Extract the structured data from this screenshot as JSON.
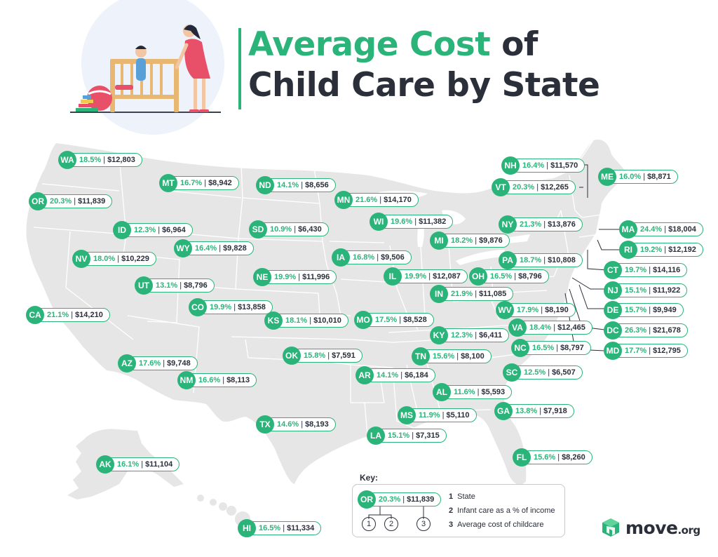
{
  "title": {
    "part1": "Average Cost",
    "part2": " of",
    "line2": "Child Care by State"
  },
  "states": [
    {
      "abbr": "WA",
      "pct": "18.5%",
      "cost": "$12,803"
    },
    {
      "abbr": "OR",
      "pct": "20.3%",
      "cost": "$11,839"
    },
    {
      "abbr": "CA",
      "pct": "21.1%",
      "cost": "$14,210"
    },
    {
      "abbr": "NV",
      "pct": "18.0%",
      "cost": "$10,229"
    },
    {
      "abbr": "ID",
      "pct": "12.3%",
      "cost": "$6,964"
    },
    {
      "abbr": "MT",
      "pct": "16.7%",
      "cost": "$8,942"
    },
    {
      "abbr": "WY",
      "pct": "16.4%",
      "cost": "$9,828"
    },
    {
      "abbr": "UT",
      "pct": "13.1%",
      "cost": "$8,796"
    },
    {
      "abbr": "AZ",
      "pct": "17.6%",
      "cost": "$9,748"
    },
    {
      "abbr": "NM",
      "pct": "16.6%",
      "cost": "$8,113"
    },
    {
      "abbr": "CO",
      "pct": "19.9%",
      "cost": "$13,858"
    },
    {
      "abbr": "ND",
      "pct": "14.1%",
      "cost": "$8,656"
    },
    {
      "abbr": "SD",
      "pct": "10.9%",
      "cost": "$6,430"
    },
    {
      "abbr": "NE",
      "pct": "19.9%",
      "cost": "$11,996"
    },
    {
      "abbr": "KS",
      "pct": "18.1%",
      "cost": "$10,010"
    },
    {
      "abbr": "OK",
      "pct": "15.8%",
      "cost": "$7,591"
    },
    {
      "abbr": "TX",
      "pct": "14.6%",
      "cost": "$8,193"
    },
    {
      "abbr": "MN",
      "pct": "21.6%",
      "cost": "$14,170"
    },
    {
      "abbr": "IA",
      "pct": "16.8%",
      "cost": "$9,506"
    },
    {
      "abbr": "MO",
      "pct": "17.5%",
      "cost": "$8,528"
    },
    {
      "abbr": "AR",
      "pct": "14.1%",
      "cost": "$6,184"
    },
    {
      "abbr": "LA",
      "pct": "15.1%",
      "cost": "$7,315"
    },
    {
      "abbr": "WI",
      "pct": "19.6%",
      "cost": "$11,382"
    },
    {
      "abbr": "IL",
      "pct": "19.9%",
      "cost": "$12,087"
    },
    {
      "abbr": "MI",
      "pct": "18.2%",
      "cost": "$9,876"
    },
    {
      "abbr": "IN",
      "pct": "21.9%",
      "cost": "$11,085"
    },
    {
      "abbr": "OH",
      "pct": "16.5%",
      "cost": "$8,796"
    },
    {
      "abbr": "KY",
      "pct": "12.3%",
      "cost": "$6,411"
    },
    {
      "abbr": "TN",
      "pct": "15.6%",
      "cost": "$8,100"
    },
    {
      "abbr": "MS",
      "pct": "11.9%",
      "cost": "$5,110"
    },
    {
      "abbr": "AL",
      "pct": "11.6%",
      "cost": "$5,593"
    },
    {
      "abbr": "GA",
      "pct": "13.8%",
      "cost": "$7,918"
    },
    {
      "abbr": "FL",
      "pct": "15.6%",
      "cost": "$8,260"
    },
    {
      "abbr": "SC",
      "pct": "12.5%",
      "cost": "$6,507"
    },
    {
      "abbr": "NC",
      "pct": "16.5%",
      "cost": "$8,797"
    },
    {
      "abbr": "VA",
      "pct": "18.4%",
      "cost": "$12,465"
    },
    {
      "abbr": "WV",
      "pct": "17.9%",
      "cost": "$8,190"
    },
    {
      "abbr": "PA",
      "pct": "18.7%",
      "cost": "$10,808"
    },
    {
      "abbr": "NY",
      "pct": "21.3%",
      "cost": "$13,876"
    },
    {
      "abbr": "VT",
      "pct": "20.3%",
      "cost": "$12,265"
    },
    {
      "abbr": "NH",
      "pct": "16.4%",
      "cost": "$11,570"
    },
    {
      "abbr": "ME",
      "pct": "16.0%",
      "cost": "$8,871"
    },
    {
      "abbr": "MA",
      "pct": "24.4%",
      "cost": "$18,004"
    },
    {
      "abbr": "RI",
      "pct": "19.2%",
      "cost": "$12,192"
    },
    {
      "abbr": "CT",
      "pct": "19.7%",
      "cost": "$14,116"
    },
    {
      "abbr": "NJ",
      "pct": "15.1%",
      "cost": "$11,922"
    },
    {
      "abbr": "DE",
      "pct": "15.7%",
      "cost": "$9,949"
    },
    {
      "abbr": "DC",
      "pct": "26.3%",
      "cost": "$21,678"
    },
    {
      "abbr": "MD",
      "pct": "17.7%",
      "cost": "$12,795"
    },
    {
      "abbr": "AK",
      "pct": "16.1%",
      "cost": "$11,104"
    },
    {
      "abbr": "HI",
      "pct": "16.5%",
      "cost": "$11,334"
    }
  ],
  "key": {
    "title": "Key:",
    "example": {
      "abbr": "OR",
      "pct": "20.3%",
      "cost": "$11,839"
    },
    "nums": [
      "1",
      "2",
      "3"
    ],
    "items": [
      {
        "n": "1",
        "label": "State"
      },
      {
        "n": "2",
        "label": "Infant care as a % of income"
      },
      {
        "n": "3",
        "label": "Average cost of childcare"
      }
    ]
  },
  "logo": {
    "name": "move",
    "suffix": ".org"
  },
  "colors": {
    "accent": "#2bb47a",
    "text": "#2b2f3a",
    "land": "#e6e6e6",
    "border": "#ffffff"
  }
}
